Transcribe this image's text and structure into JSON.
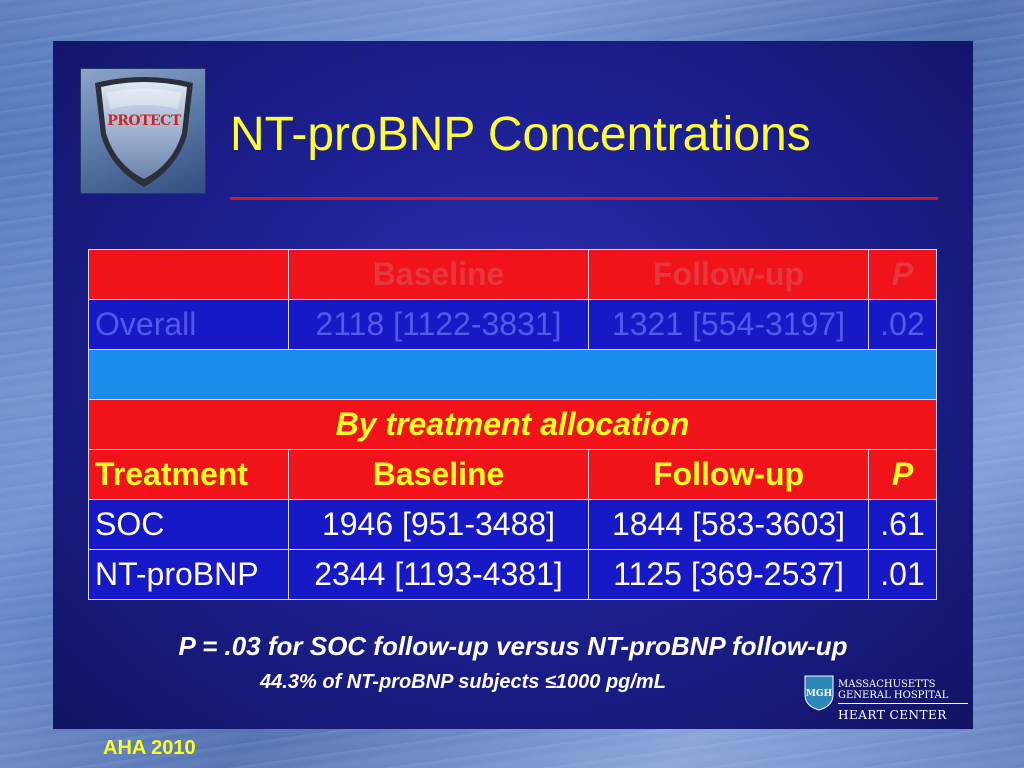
{
  "slide": {
    "logo_text": "PROTECT",
    "title": "NT-proBNP Concentrations"
  },
  "overall_table": {
    "headers": [
      "",
      "Baseline",
      "Follow-up",
      "P"
    ],
    "row": [
      "Overall",
      "2118 [1122-3831]",
      "1321 [554-3197]",
      ".02"
    ]
  },
  "allocation": {
    "heading": "By treatment allocation",
    "headers": [
      "Treatment",
      "Baseline",
      "Follow-up",
      "P"
    ],
    "rows": [
      [
        "SOC",
        "1946 [951-3488]",
        "1844 [583-3603]",
        ".61"
      ],
      [
        "NT-proBNP",
        "2344 [1193-4381]",
        "1125 [369-2537]",
        ".01"
      ]
    ]
  },
  "notes": {
    "line1": "P = .03 for SOC follow-up versus NT-proBNP follow-up",
    "line2": "44.3% of NT-proBNP subjects ≤1000 pg/mL"
  },
  "branding": {
    "mgh_line1": "MASSACHUSETTS",
    "mgh_line2": "GENERAL HOSPITAL",
    "mgh_line3": "HEART CENTER",
    "shield_text": "MGH"
  },
  "footer": "AHA 2010"
}
